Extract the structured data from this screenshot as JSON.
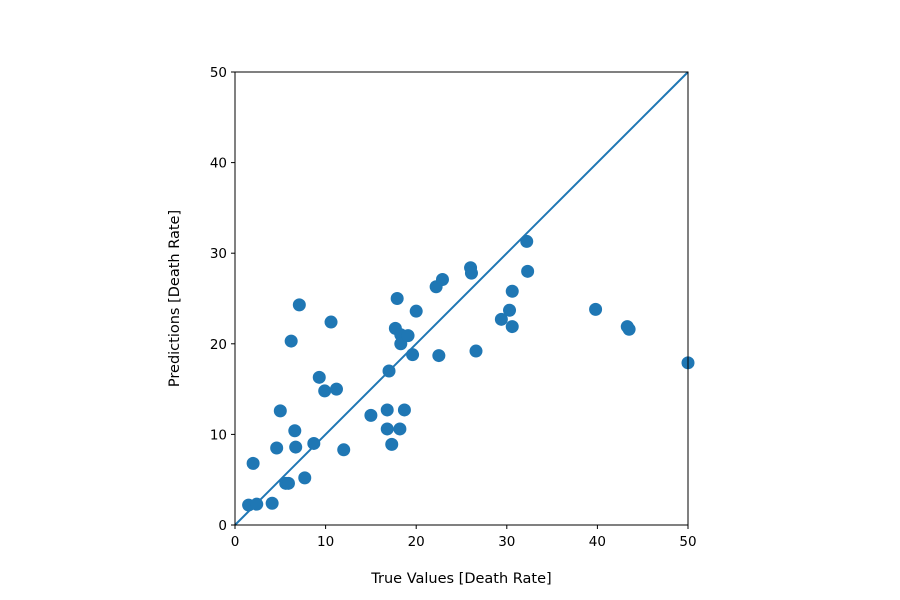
{
  "chart_data": {
    "type": "scatter",
    "title": "",
    "xlabel": "True Values [Death Rate]",
    "ylabel": "Predictions [Death Rate]",
    "xlim": [
      0,
      50
    ],
    "ylim": [
      0,
      50
    ],
    "xticks": [
      0,
      10,
      20,
      30,
      40,
      50
    ],
    "yticks": [
      0,
      10,
      20,
      30,
      40,
      50
    ],
    "grid": false,
    "reference_line": {
      "from": [
        0,
        0
      ],
      "to": [
        50,
        50
      ]
    },
    "series": [
      {
        "color": "#1f77b4",
        "points": [
          [
            1.5,
            2.2
          ],
          [
            2.4,
            2.3
          ],
          [
            2.0,
            6.8
          ],
          [
            4.1,
            2.4
          ],
          [
            4.6,
            8.5
          ],
          [
            5.0,
            12.6
          ],
          [
            5.6,
            4.6
          ],
          [
            5.9,
            4.6
          ],
          [
            6.2,
            20.3
          ],
          [
            6.6,
            10.4
          ],
          [
            6.7,
            8.6
          ],
          [
            7.1,
            24.3
          ],
          [
            7.7,
            5.2
          ],
          [
            8.7,
            9.0
          ],
          [
            9.3,
            16.3
          ],
          [
            9.9,
            14.8
          ],
          [
            10.6,
            22.4
          ],
          [
            11.2,
            15.0
          ],
          [
            12.0,
            8.3
          ],
          [
            15.0,
            12.1
          ],
          [
            16.8,
            12.7
          ],
          [
            16.8,
            10.6
          ],
          [
            17.0,
            17.0
          ],
          [
            17.3,
            8.9
          ],
          [
            17.7,
            21.7
          ],
          [
            17.9,
            25.0
          ],
          [
            18.2,
            10.6
          ],
          [
            18.3,
            21.0
          ],
          [
            18.3,
            20.0
          ],
          [
            18.7,
            12.7
          ],
          [
            19.1,
            20.9
          ],
          [
            19.6,
            18.8
          ],
          [
            20.0,
            23.6
          ],
          [
            22.2,
            26.3
          ],
          [
            22.5,
            18.7
          ],
          [
            22.9,
            27.1
          ],
          [
            26.0,
            28.4
          ],
          [
            26.1,
            27.8
          ],
          [
            26.6,
            19.2
          ],
          [
            29.4,
            22.7
          ],
          [
            30.3,
            23.7
          ],
          [
            30.6,
            25.8
          ],
          [
            30.6,
            21.9
          ],
          [
            32.2,
            31.3
          ],
          [
            32.3,
            28.0
          ],
          [
            39.8,
            23.8
          ],
          [
            43.3,
            21.9
          ],
          [
            43.5,
            21.6
          ],
          [
            50.0,
            17.9
          ]
        ]
      }
    ]
  }
}
